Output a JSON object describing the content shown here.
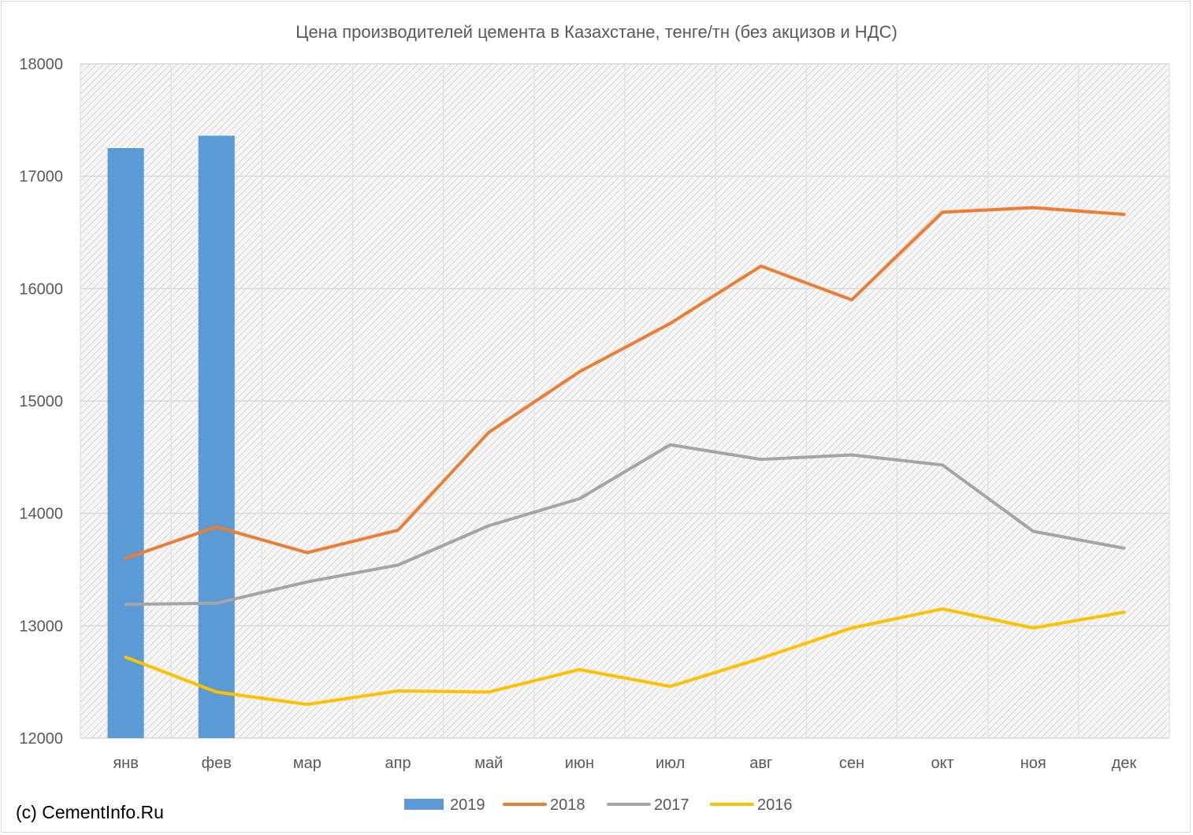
{
  "credit": "(c) CementInfo.Ru",
  "chart_data": {
    "type": "bar+line",
    "title": "Цена производителей цемента в Казахстане, тенге/тн (без акцизов и НДС)",
    "xlabel": "",
    "ylabel": "",
    "ylim": [
      12000,
      18000
    ],
    "yticks": [
      12000,
      13000,
      14000,
      15000,
      16000,
      17000,
      18000
    ],
    "categories": [
      "янв",
      "фев",
      "мар",
      "апр",
      "май",
      "июн",
      "июл",
      "авг",
      "сен",
      "окт",
      "ноя",
      "дек"
    ],
    "grid": true,
    "legend_position": "bottom",
    "series": [
      {
        "name": "2019",
        "type": "bar",
        "color": "#5b9bd5",
        "values": [
          17250,
          17360,
          null,
          null,
          null,
          null,
          null,
          null,
          null,
          null,
          null,
          null
        ]
      },
      {
        "name": "2018",
        "type": "line",
        "color": "#ed7d31",
        "values": [
          13600,
          13880,
          13650,
          13850,
          14720,
          15260,
          15690,
          16200,
          15900,
          16680,
          16720,
          16660
        ]
      },
      {
        "name": "2017",
        "type": "line",
        "color": "#a5a5a5",
        "values": [
          13190,
          13200,
          13390,
          13540,
          13890,
          14130,
          14610,
          14480,
          14520,
          14430,
          13840,
          13690
        ]
      },
      {
        "name": "2016",
        "type": "line",
        "color": "#ffc000",
        "values": [
          12720,
          12410,
          12300,
          12420,
          12410,
          12610,
          12460,
          12710,
          12980,
          13150,
          12980,
          13120
        ]
      }
    ]
  }
}
